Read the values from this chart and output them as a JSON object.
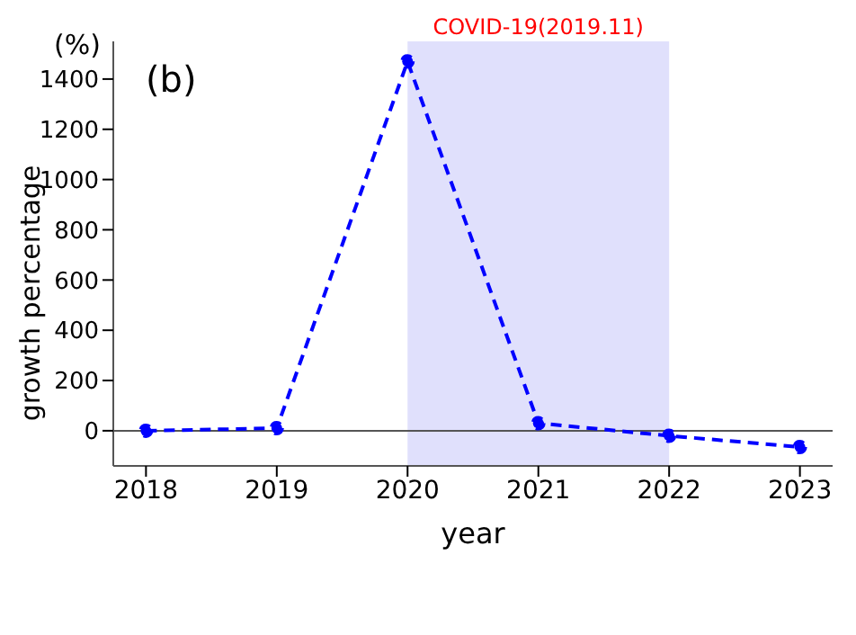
{
  "chart_data": {
    "type": "line",
    "xlabel": "year",
    "ylabel": "growth percentage",
    "annotations": [
      "(%)",
      "(b)"
    ],
    "x": [
      2018,
      2019,
      2020,
      2021,
      2022,
      2023
    ],
    "series": [
      {
        "color": "#0000ff",
        "values": [
          0,
          10,
          1470,
          30,
          -20,
          -65
        ]
      }
    ],
    "xlim": [
      2017.75,
      2023.25
    ],
    "xticks": [
      2018,
      2019,
      2020,
      2021,
      2022,
      2023
    ],
    "ylim": [
      -140,
      1550
    ],
    "yticks": [
      0,
      200,
      400,
      600,
      800,
      1000,
      1200,
      1400
    ],
    "bands": [
      {
        "axis": "x",
        "from": 2020,
        "to": 2022,
        "label": "COVID-19(2019.11)",
        "color": "#e0e0fc"
      }
    ],
    "ref_lines": [
      {
        "axis": "y",
        "value": 0,
        "color": "#555555"
      }
    ],
    "marker": "circle",
    "line_style": "dashed",
    "grid": false
  }
}
